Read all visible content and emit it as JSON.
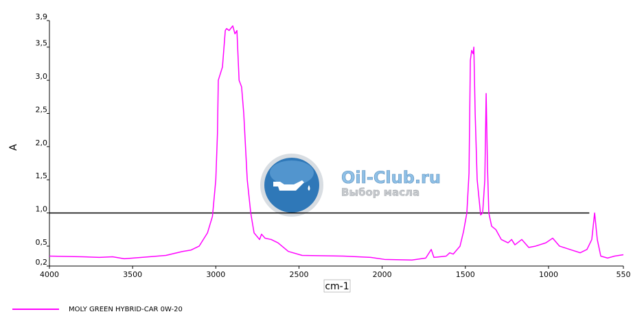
{
  "chart_data": {
    "type": "line",
    "ylabel": "A",
    "xlabel": "cm-1",
    "xlim": [
      4000,
      550
    ],
    "xticks": [
      4000,
      3500,
      3000,
      2500,
      2000,
      1500,
      1000,
      550
    ],
    "ylim": [
      0.2,
      3.9
    ],
    "yticks": [
      {
        "value": 0.2,
        "label": "0,2"
      },
      {
        "value": 0.5,
        "label": "0,5"
      },
      {
        "value": 1.0,
        "label": "1,0"
      },
      {
        "value": 1.5,
        "label": "1,5"
      },
      {
        "value": 2.0,
        "label": "2,0"
      },
      {
        "value": 2.5,
        "label": "2,5"
      },
      {
        "value": 3.0,
        "label": "3,0"
      },
      {
        "value": 3.5,
        "label": "3,5"
      },
      {
        "value": 3.9,
        "label": "3,9"
      }
    ],
    "hline": {
      "y": 1.0,
      "x": [
        4000,
        755
      ],
      "color": "#000000"
    },
    "watermark": {
      "title": "Oil-Club.ru",
      "subtitle": "Выбор масла"
    },
    "x": [
      4000,
      3800,
      3700,
      3620,
      3550,
      3400,
      3300,
      3200,
      3150,
      3100,
      3050,
      3020,
      3000,
      2990,
      2985,
      2960,
      2943,
      2935,
      2920,
      2898,
      2885,
      2873,
      2860,
      2845,
      2832,
      2811,
      2790,
      2770,
      2737,
      2725,
      2704,
      2667,
      2626,
      2564,
      2481,
      2234,
      2069,
      1986,
      1821,
      1738,
      1705,
      1689,
      1615,
      1594,
      1573,
      1532,
      1511,
      1491,
      1478,
      1470,
      1462,
      1453,
      1449,
      1441,
      1429,
      1408,
      1396,
      1383,
      1375,
      1367,
      1359,
      1342,
      1317,
      1284,
      1243,
      1222,
      1202,
      1161,
      1119,
      1078,
      1016,
      975,
      934,
      872,
      810,
      769,
      740,
      723,
      707,
      686,
      645,
      603,
      550
    ],
    "series": [
      {
        "name": "MOLY GREEN HYBRID-CAR 0W-20",
        "color": "#ff00ff",
        "values": [
          0.35,
          0.34,
          0.33,
          0.34,
          0.31,
          0.34,
          0.36,
          0.42,
          0.44,
          0.5,
          0.7,
          0.95,
          1.5,
          2.2,
          3.0,
          3.2,
          3.75,
          3.78,
          3.75,
          3.82,
          3.7,
          3.75,
          3.0,
          2.9,
          2.5,
          1.5,
          1.0,
          0.7,
          0.6,
          0.68,
          0.62,
          0.6,
          0.55,
          0.42,
          0.36,
          0.35,
          0.33,
          0.3,
          0.29,
          0.32,
          0.45,
          0.33,
          0.35,
          0.4,
          0.38,
          0.5,
          0.72,
          1.0,
          1.6,
          3.3,
          3.45,
          3.4,
          3.5,
          2.5,
          1.5,
          0.97,
          1.0,
          1.5,
          2.8,
          1.7,
          1.0,
          0.8,
          0.75,
          0.6,
          0.55,
          0.6,
          0.52,
          0.6,
          0.48,
          0.5,
          0.55,
          0.62,
          0.5,
          0.45,
          0.4,
          0.45,
          0.6,
          1.0,
          0.6,
          0.35,
          0.32,
          0.35,
          0.37
        ]
      }
    ]
  }
}
